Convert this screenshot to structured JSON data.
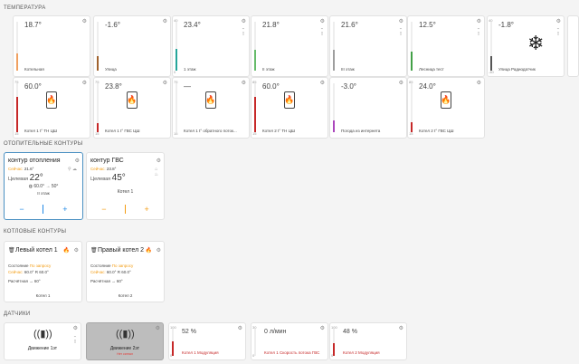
{
  "sections": {
    "temperature": "ТЕМПЕРАТУРА",
    "heating": "ОТОПИТЕЛЬНЫЕ КОНТУРЫ",
    "boilers": "КОТЛОВЫЕ КОНТУРЫ",
    "sensors": "ДАТЧИКИ"
  },
  "temps_row1": [
    {
      "value": "18.7°",
      "label": "Котельная",
      "color": "#f0a060",
      "level": 0.35
    },
    {
      "value": "-1.6°",
      "label": "Улица",
      "color": "#a0622d",
      "level": 0.3
    },
    {
      "value": "23.4°",
      "label": "1 этаж",
      "color": "#26a69a",
      "level": 0.45,
      "top": "40",
      "bottom": "0"
    },
    {
      "value": "21.8°",
      "label": "II этаж",
      "color": "#66bb6a",
      "level": 0.42
    },
    {
      "value": "21.6°",
      "label": "III этаж",
      "color": "#9e9e9e",
      "level": 0.42
    },
    {
      "value": "12.5°",
      "label": "Лесница тест",
      "color": "#43a047",
      "level": 0.38
    },
    {
      "value": "-1.8°",
      "label": "Улица Радиодатчик",
      "color": "#555555",
      "level": 0.3,
      "top": "40",
      "bottom": "-40"
    }
  ],
  "temps_row2": [
    {
      "value": "60.0°",
      "label": "Котел 1 t° ТН ЦШ",
      "color": "#c62828",
      "level": 0.72,
      "top": "75",
      "bottom": "15"
    },
    {
      "value": "23.8°",
      "label": "Котел 1 t° ГВС ЦШ",
      "color": "#c62828",
      "level": 0.18,
      "top": "75",
      "bottom": "15"
    },
    {
      "value": "—",
      "label": "Котел 1 t° обратного поток...",
      "color": "#c62828",
      "level": 0.0,
      "top": "75",
      "bottom": "15"
    },
    {
      "value": "60.0°",
      "label": "Котел 2 t° ТН ЦШ",
      "color": "#c62828",
      "level": 0.72,
      "top": "85",
      "bottom": "15"
    },
    {
      "value": "-3.0°",
      "label": "Погода из интернета",
      "color": "#ab47bc",
      "level": 0.25
    },
    {
      "value": "24.0°",
      "label": "Котел 2 t° ГВС ЦШ",
      "color": "#c62828",
      "level": 0.2,
      "top": "85",
      "bottom": "15"
    }
  ],
  "contours": [
    {
      "title": "контур отопления",
      "now_label": "Сейчас:",
      "now_value": "21.6°",
      "target_label": "Целевая",
      "target_value": "22°",
      "setpoint": "60.0° → 50°",
      "floor": "II этаж",
      "minus": "−",
      "plus": "+"
    },
    {
      "title": "контур ГВС",
      "now_label": "Сейчас:",
      "now_value": "23.8°",
      "target_label": "Целевая",
      "target_value": "45°",
      "floor": "Котел 1",
      "minus": "−",
      "plus": "+"
    }
  ],
  "boilers": [
    {
      "title": "Левый котел 1",
      "state_label": "Состояние",
      "state_value": "По запросу",
      "now_label": "Сейчас:",
      "now_value": "60.0° R 60.0°",
      "calc_label": "Расчётная",
      "calc_value": "→ 60°",
      "footer": "Котел 1"
    },
    {
      "title": "Правый котел 2",
      "state_label": "Состояние",
      "state_value": "По запросу",
      "now_label": "Сейчас:",
      "now_value": "60.0° R 60.0°",
      "calc_label": "Расчётная",
      "calc_value": "→ 60°",
      "footer": "Котел 2"
    }
  ],
  "sensors": [
    {
      "label": "Движение 1эт"
    },
    {
      "label": "Движение 2эт",
      "sub": "Нет сигнал"
    },
    {
      "value": "52 %",
      "label": "Котел 1 Модуляция",
      "top": "100",
      "bottom": "0",
      "level": 0.52
    },
    {
      "value": "0 л/мин",
      "label": "Котел 1 Скорость потока ГВС",
      "top": "30",
      "bottom": "0",
      "level": 0.0
    },
    {
      "value": "48 %",
      "label": "Котел 2 Модуляция",
      "top": "100",
      "bottom": "0",
      "level": 0.48
    }
  ],
  "icons": {
    "gear": "⚙",
    "plus_small": "+",
    "flame": "🔥",
    "snowflake": "❄"
  }
}
